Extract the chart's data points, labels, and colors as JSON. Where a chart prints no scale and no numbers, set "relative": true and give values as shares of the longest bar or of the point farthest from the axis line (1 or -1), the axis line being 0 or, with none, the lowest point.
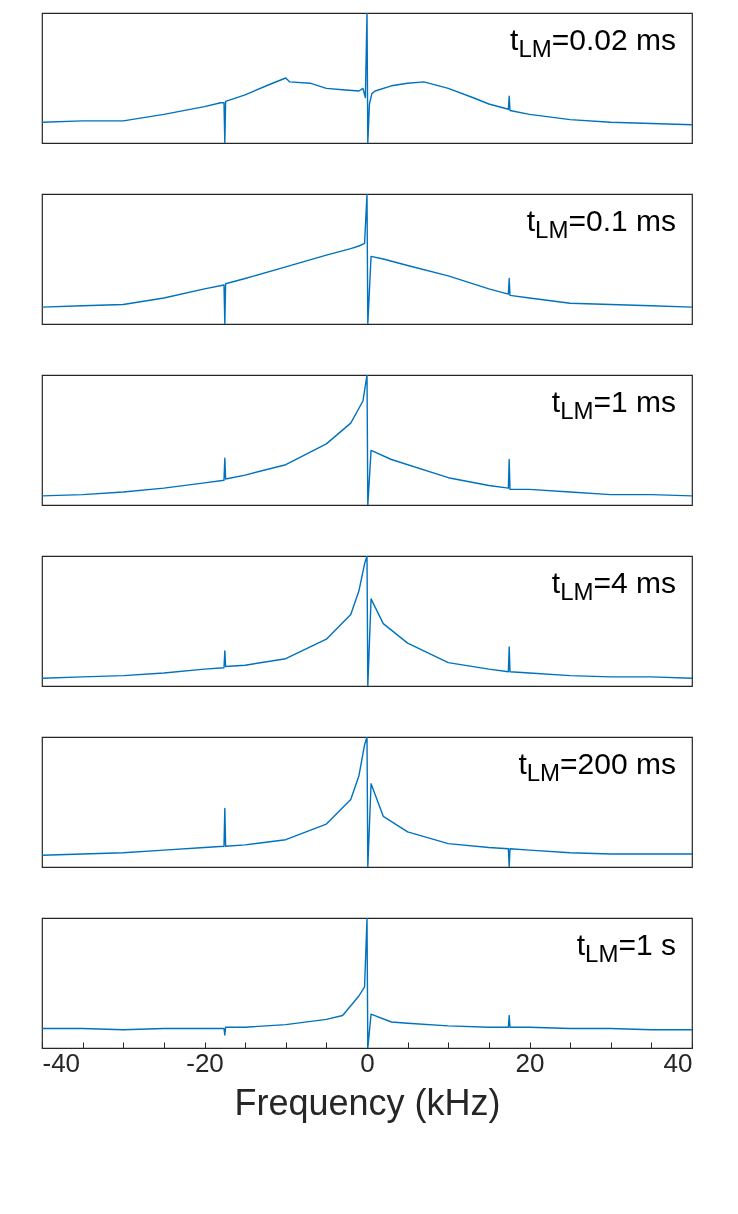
{
  "chart_data": [
    {
      "type": "line",
      "relative": true,
      "xlim": [
        -40,
        40
      ],
      "xticks": [
        {
          "value": -40,
          "label": null
        },
        {
          "value": -20,
          "label": null
        },
        {
          "value": 0,
          "label": null
        },
        {
          "value": 20,
          "label": null
        },
        {
          "value": 40,
          "label": null
        }
      ],
      "tick_labels": false,
      "grid": false,
      "annotations": [
        "t$_{LM}$=0.02 ms"
      ],
      "series": [
        {
          "color": "#0072bd",
          "x": [
            -40,
            -35,
            -30,
            -25,
            -20,
            -18,
            -17.6,
            -17.5,
            -17.4,
            -15,
            -12,
            -10,
            -9.5,
            -7,
            -5,
            -3,
            -1,
            -0.5,
            -0.2,
            0,
            0.1,
            0.3,
            0.6,
            1,
            3,
            5,
            7,
            10,
            13,
            15,
            17.4,
            17.5,
            17.6,
            20,
            25,
            30,
            35,
            40
          ],
          "values": [
            0.16,
            0.17,
            0.17,
            0.22,
            0.28,
            0.31,
            0.31,
            0,
            0.32,
            0.37,
            0.45,
            0.5,
            0.47,
            0.46,
            0.42,
            0.41,
            0.4,
            0.42,
            0.35,
            1,
            0,
            0.3,
            0.38,
            0.4,
            0.44,
            0.46,
            0.47,
            0.42,
            0.35,
            0.3,
            0.26,
            0.36,
            0.25,
            0.22,
            0.18,
            0.16,
            0.15,
            0.14
          ]
        }
      ]
    },
    {
      "type": "line",
      "relative": true,
      "xlim": [
        -40,
        40
      ],
      "xticks": [
        {
          "value": -40,
          "label": null
        },
        {
          "value": -20,
          "label": null
        },
        {
          "value": 0,
          "label": null
        },
        {
          "value": 20,
          "label": null
        },
        {
          "value": 40,
          "label": null
        }
      ],
      "tick_labels": false,
      "grid": false,
      "annotations": [
        "t$_{LM}$=0.1 ms"
      ],
      "series": [
        {
          "color": "#0072bd",
          "x": [
            -40,
            -35,
            -30,
            -25,
            -20,
            -17.6,
            -17.5,
            -17.4,
            -15,
            -10,
            -5,
            -2,
            -1,
            -0.3,
            0,
            0.1,
            0.5,
            2,
            5,
            10,
            15,
            17.4,
            17.5,
            17.6,
            20,
            25,
            30,
            35,
            40
          ],
          "values": [
            0.13,
            0.14,
            0.15,
            0.2,
            0.27,
            0.3,
            0,
            0.31,
            0.35,
            0.44,
            0.53,
            0.58,
            0.6,
            0.62,
            1,
            0,
            0.52,
            0.5,
            0.45,
            0.37,
            0.27,
            0.23,
            0.35,
            0.22,
            0.2,
            0.16,
            0.15,
            0.14,
            0.13
          ]
        }
      ]
    },
    {
      "type": "line",
      "relative": true,
      "xlim": [
        -40,
        40
      ],
      "xticks": [
        {
          "value": -40,
          "label": null
        },
        {
          "value": -20,
          "label": null
        },
        {
          "value": 0,
          "label": null
        },
        {
          "value": 20,
          "label": null
        },
        {
          "value": 40,
          "label": null
        }
      ],
      "tick_labels": false,
      "grid": false,
      "annotations": [
        "t$_{LM}$=1 ms"
      ],
      "series": [
        {
          "color": "#0072bd",
          "x": [
            -40,
            -35,
            -30,
            -25,
            -20,
            -17.6,
            -17.5,
            -17.4,
            -15,
            -10,
            -5,
            -2,
            -0.5,
            0,
            0.1,
            0.5,
            3,
            10,
            15,
            17.4,
            17.5,
            17.6,
            20,
            25,
            30,
            35,
            40
          ],
          "values": [
            0.07,
            0.08,
            0.1,
            0.13,
            0.17,
            0.19,
            0.36,
            0.2,
            0.23,
            0.31,
            0.47,
            0.63,
            0.8,
            1,
            0,
            0.42,
            0.35,
            0.21,
            0.15,
            0.13,
            0.35,
            0.12,
            0.12,
            0.1,
            0.08,
            0.08,
            0.07
          ]
        }
      ]
    },
    {
      "type": "line",
      "relative": true,
      "xlim": [
        -40,
        40
      ],
      "xticks": [
        {
          "value": -40,
          "label": null
        },
        {
          "value": -20,
          "label": null
        },
        {
          "value": 0,
          "label": null
        },
        {
          "value": 20,
          "label": null
        },
        {
          "value": 40,
          "label": null
        }
      ],
      "tick_labels": false,
      "grid": false,
      "annotations": [
        "t$_{LM}$=4 ms"
      ],
      "series": [
        {
          "color": "#0072bd",
          "x": [
            -40,
            -35,
            -30,
            -25,
            -20,
            -17.6,
            -17.5,
            -17.4,
            -15,
            -10,
            -5,
            -2,
            -1,
            -0.3,
            0,
            0.1,
            0.5,
            2,
            5,
            10,
            15,
            17.4,
            17.5,
            17.6,
            20,
            25,
            30,
            35,
            40
          ],
          "values": [
            0.06,
            0.07,
            0.08,
            0.1,
            0.13,
            0.14,
            0.27,
            0.15,
            0.16,
            0.21,
            0.36,
            0.55,
            0.73,
            0.94,
            1,
            0,
            0.67,
            0.48,
            0.33,
            0.18,
            0.13,
            0.11,
            0.3,
            0.11,
            0.1,
            0.08,
            0.07,
            0.07,
            0.06
          ]
        }
      ]
    },
    {
      "type": "line",
      "relative": true,
      "xlim": [
        -40,
        40
      ],
      "xticks": [
        {
          "value": -40,
          "label": null
        },
        {
          "value": -20,
          "label": null
        },
        {
          "value": 0,
          "label": null
        },
        {
          "value": 20,
          "label": null
        },
        {
          "value": 40,
          "label": null
        }
      ],
      "tick_labels": false,
      "grid": false,
      "annotations": [
        "t$_{LM}$=200 ms"
      ],
      "series": [
        {
          "color": "#0072bd",
          "x": [
            -40,
            -35,
            -30,
            -25,
            -20,
            -17.6,
            -17.5,
            -17.4,
            -15,
            -10,
            -5,
            -2,
            -1,
            -0.3,
            0,
            0.1,
            0.5,
            2,
            5,
            10,
            15,
            17.4,
            17.5,
            17.6,
            20,
            25,
            30,
            35,
            40
          ],
          "values": [
            0.09,
            0.1,
            0.11,
            0.13,
            0.15,
            0.16,
            0.45,
            0.16,
            0.17,
            0.21,
            0.33,
            0.52,
            0.7,
            0.94,
            1,
            0,
            0.64,
            0.39,
            0.27,
            0.18,
            0.15,
            0.14,
            0,
            0.14,
            0.13,
            0.11,
            0.1,
            0.1,
            0.1
          ]
        }
      ]
    },
    {
      "type": "line",
      "relative": true,
      "xlim": [
        -40,
        40
      ],
      "xticks": [
        {
          "value": -40,
          "label": "-40"
        },
        {
          "value": -35,
          "label": null
        },
        {
          "value": -30,
          "label": null
        },
        {
          "value": -25,
          "label": null
        },
        {
          "value": -20,
          "label": "-20"
        },
        {
          "value": -15,
          "label": null
        },
        {
          "value": -10,
          "label": null
        },
        {
          "value": -5,
          "label": null
        },
        {
          "value": 0,
          "label": "0"
        },
        {
          "value": 5,
          "label": null
        },
        {
          "value": 10,
          "label": null
        },
        {
          "value": 15,
          "label": null
        },
        {
          "value": 20,
          "label": "20"
        },
        {
          "value": 25,
          "label": null
        },
        {
          "value": 30,
          "label": null
        },
        {
          "value": 35,
          "label": null
        },
        {
          "value": 40,
          "label": "40"
        }
      ],
      "tick_labels": "x",
      "grid": false,
      "xlabel": "Frequency (kHz)",
      "annotations": [
        "t$_{LM}$=1 s"
      ],
      "series": [
        {
          "color": "#0072bd",
          "x": [
            -40,
            -35,
            -30,
            -25,
            -20,
            -17.6,
            -17.5,
            -17.4,
            -15,
            -10,
            -5,
            -3,
            -1,
            -0.3,
            0,
            0.1,
            0.5,
            3,
            5,
            10,
            15,
            17.4,
            17.5,
            17.6,
            20,
            25,
            30,
            35,
            40
          ],
          "values": [
            0.15,
            0.15,
            0.14,
            0.15,
            0.15,
            0.15,
            0.1,
            0.16,
            0.16,
            0.18,
            0.22,
            0.25,
            0.4,
            0.47,
            1,
            0,
            0.26,
            0.2,
            0.19,
            0.17,
            0.16,
            0.16,
            0.25,
            0.16,
            0.16,
            0.15,
            0.15,
            0.14,
            0.14
          ]
        }
      ]
    }
  ]
}
